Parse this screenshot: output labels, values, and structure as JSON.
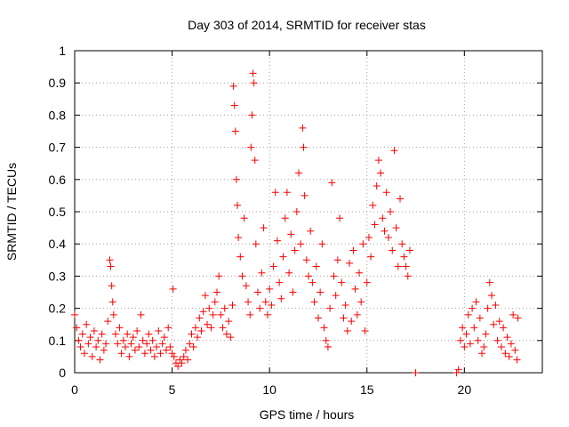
{
  "chart_data": {
    "type": "scatter",
    "title": "Day 303 of 2014, SRMTID for receiver stas",
    "xlabel": "GPS time / hours",
    "ylabel": "SRMTID / TECUs",
    "xlim": [
      0,
      24
    ],
    "ylim": [
      0,
      1
    ],
    "x_ticks": [
      0,
      5,
      10,
      15,
      20
    ],
    "y_ticks": [
      0,
      0.1,
      0.2,
      0.3,
      0.4,
      0.5,
      0.6,
      0.7,
      0.8,
      0.9,
      1
    ],
    "x_tick_labels": [
      "0",
      "5",
      "10",
      "15",
      "20"
    ],
    "y_tick_labels": [
      "0",
      "0.1",
      "0.2",
      "0.3",
      "0.4",
      "0.5",
      "0.6",
      "0.7",
      "0.8",
      "0.9",
      "1"
    ],
    "grid": true,
    "marker": "+",
    "series": [
      {
        "name": "SRMTID",
        "color": "#ff0000",
        "points": [
          [
            0.0,
            0.18
          ],
          [
            0.1,
            0.14
          ],
          [
            0.2,
            0.1
          ],
          [
            0.3,
            0.08
          ],
          [
            0.4,
            0.12
          ],
          [
            0.5,
            0.06
          ],
          [
            0.6,
            0.15
          ],
          [
            0.7,
            0.09
          ],
          [
            0.8,
            0.11
          ],
          [
            0.9,
            0.05
          ],
          [
            1.0,
            0.13
          ],
          [
            1.1,
            0.08
          ],
          [
            1.2,
            0.1
          ],
          [
            1.3,
            0.04
          ],
          [
            1.4,
            0.12
          ],
          [
            1.5,
            0.07
          ],
          [
            1.6,
            0.09
          ],
          [
            1.7,
            0.16
          ],
          [
            1.8,
            0.35
          ],
          [
            1.85,
            0.33
          ],
          [
            1.9,
            0.27
          ],
          [
            1.95,
            0.22
          ],
          [
            2.0,
            0.18
          ],
          [
            2.1,
            0.12
          ],
          [
            2.2,
            0.09
          ],
          [
            2.3,
            0.14
          ],
          [
            2.4,
            0.06
          ],
          [
            2.5,
            0.1
          ],
          [
            2.6,
            0.08
          ],
          [
            2.7,
            0.12
          ],
          [
            2.8,
            0.05
          ],
          [
            2.9,
            0.09
          ],
          [
            3.0,
            0.11
          ],
          [
            3.1,
            0.07
          ],
          [
            3.2,
            0.13
          ],
          [
            3.3,
            0.08
          ],
          [
            3.4,
            0.18
          ],
          [
            3.5,
            0.1
          ],
          [
            3.6,
            0.06
          ],
          [
            3.7,
            0.09
          ],
          [
            3.8,
            0.12
          ],
          [
            3.9,
            0.07
          ],
          [
            4.0,
            0.1
          ],
          [
            4.1,
            0.05
          ],
          [
            4.2,
            0.08
          ],
          [
            4.3,
            0.13
          ],
          [
            4.4,
            0.06
          ],
          [
            4.5,
            0.09
          ],
          [
            4.6,
            0.11
          ],
          [
            4.7,
            0.07
          ],
          [
            4.8,
            0.14
          ],
          [
            4.9,
            0.08
          ],
          [
            5.0,
            0.06
          ],
          [
            5.05,
            0.26
          ],
          [
            5.1,
            0.05
          ],
          [
            5.2,
            0.03
          ],
          [
            5.3,
            0.02
          ],
          [
            5.4,
            0.04
          ],
          [
            5.5,
            0.03
          ],
          [
            5.6,
            0.05
          ],
          [
            5.7,
            0.07
          ],
          [
            5.8,
            0.04
          ],
          [
            5.9,
            0.09
          ],
          [
            6.0,
            0.12
          ],
          [
            6.1,
            0.08
          ],
          [
            6.2,
            0.14
          ],
          [
            6.3,
            0.11
          ],
          [
            6.4,
            0.17
          ],
          [
            6.5,
            0.13
          ],
          [
            6.6,
            0.19
          ],
          [
            6.7,
            0.24
          ],
          [
            6.8,
            0.15
          ],
          [
            6.9,
            0.2
          ],
          [
            7.0,
            0.14
          ],
          [
            7.1,
            0.18
          ],
          [
            7.2,
            0.22
          ],
          [
            7.3,
            0.25
          ],
          [
            7.4,
            0.3
          ],
          [
            7.5,
            0.18
          ],
          [
            7.6,
            0.14
          ],
          [
            7.7,
            0.2
          ],
          [
            7.8,
            0.12
          ],
          [
            7.9,
            0.16
          ],
          [
            8.0,
            0.11
          ],
          [
            8.1,
            0.21
          ],
          [
            8.15,
            0.89
          ],
          [
            8.2,
            0.83
          ],
          [
            8.25,
            0.75
          ],
          [
            8.3,
            0.6
          ],
          [
            8.35,
            0.52
          ],
          [
            8.4,
            0.42
          ],
          [
            8.5,
            0.36
          ],
          [
            8.6,
            0.3
          ],
          [
            8.7,
            0.48
          ],
          [
            8.8,
            0.27
          ],
          [
            8.9,
            0.22
          ],
          [
            9.0,
            0.18
          ],
          [
            9.05,
            0.7
          ],
          [
            9.1,
            0.8
          ],
          [
            9.15,
            0.93
          ],
          [
            9.2,
            0.9
          ],
          [
            9.25,
            0.66
          ],
          [
            9.3,
            0.4
          ],
          [
            9.4,
            0.25
          ],
          [
            9.5,
            0.2
          ],
          [
            9.6,
            0.31
          ],
          [
            9.7,
            0.45
          ],
          [
            9.8,
            0.22
          ],
          [
            9.9,
            0.18
          ],
          [
            10.0,
            0.26
          ],
          [
            10.1,
            0.21
          ],
          [
            10.2,
            0.33
          ],
          [
            10.3,
            0.56
          ],
          [
            10.4,
            0.41
          ],
          [
            10.5,
            0.28
          ],
          [
            10.6,
            0.23
          ],
          [
            10.7,
            0.36
          ],
          [
            10.8,
            0.48
          ],
          [
            10.9,
            0.56
          ],
          [
            11.0,
            0.31
          ],
          [
            11.1,
            0.43
          ],
          [
            11.2,
            0.25
          ],
          [
            11.3,
            0.38
          ],
          [
            11.4,
            0.5
          ],
          [
            11.5,
            0.62
          ],
          [
            11.6,
            0.4
          ],
          [
            11.7,
            0.76
          ],
          [
            11.75,
            0.7
          ],
          [
            11.8,
            0.55
          ],
          [
            11.9,
            0.35
          ],
          [
            12.0,
            0.3
          ],
          [
            12.1,
            0.44
          ],
          [
            12.2,
            0.28
          ],
          [
            12.3,
            0.22
          ],
          [
            12.4,
            0.33
          ],
          [
            12.5,
            0.17
          ],
          [
            12.6,
            0.25
          ],
          [
            12.7,
            0.4
          ],
          [
            12.8,
            0.14
          ],
          [
            12.9,
            0.1
          ],
          [
            13.0,
            0.08
          ],
          [
            13.1,
            0.2
          ],
          [
            13.2,
            0.59
          ],
          [
            13.3,
            0.3
          ],
          [
            13.4,
            0.24
          ],
          [
            13.5,
            0.35
          ],
          [
            13.6,
            0.48
          ],
          [
            13.7,
            0.28
          ],
          [
            13.8,
            0.17
          ],
          [
            13.9,
            0.21
          ],
          [
            14.0,
            0.13
          ],
          [
            14.1,
            0.34
          ],
          [
            14.2,
            0.16
          ],
          [
            14.3,
            0.38
          ],
          [
            14.4,
            0.26
          ],
          [
            14.5,
            0.18
          ],
          [
            14.6,
            0.31
          ],
          [
            14.7,
            0.22
          ],
          [
            14.8,
            0.4
          ],
          [
            14.9,
            0.13
          ],
          [
            15.0,
            0.28
          ],
          [
            15.1,
            0.42
          ],
          [
            15.2,
            0.36
          ],
          [
            15.3,
            0.52
          ],
          [
            15.4,
            0.46
          ],
          [
            15.5,
            0.58
          ],
          [
            15.6,
            0.66
          ],
          [
            15.7,
            0.62
          ],
          [
            15.8,
            0.48
          ],
          [
            15.9,
            0.44
          ],
          [
            16.0,
            0.56
          ],
          [
            16.1,
            0.42
          ],
          [
            16.2,
            0.5
          ],
          [
            16.3,
            0.38
          ],
          [
            16.4,
            0.69
          ],
          [
            16.5,
            0.45
          ],
          [
            16.6,
            0.33
          ],
          [
            16.7,
            0.54
          ],
          [
            16.8,
            0.4
          ],
          [
            16.9,
            0.36
          ],
          [
            17.0,
            0.33
          ],
          [
            17.1,
            0.3
          ],
          [
            17.2,
            0.38
          ],
          [
            17.5,
            0.0
          ],
          [
            19.6,
            0.0
          ],
          [
            19.7,
            0.01
          ],
          [
            19.8,
            0.1
          ],
          [
            19.9,
            0.14
          ],
          [
            20.0,
            0.08
          ],
          [
            20.1,
            0.12
          ],
          [
            20.2,
            0.18
          ],
          [
            20.3,
            0.09
          ],
          [
            20.4,
            0.2
          ],
          [
            20.5,
            0.14
          ],
          [
            20.6,
            0.22
          ],
          [
            20.7,
            0.1
          ],
          [
            20.8,
            0.17
          ],
          [
            20.9,
            0.06
          ],
          [
            21.0,
            0.08
          ],
          [
            21.1,
            0.12
          ],
          [
            21.2,
            0.2
          ],
          [
            21.3,
            0.28
          ],
          [
            21.4,
            0.24
          ],
          [
            21.5,
            0.15
          ],
          [
            21.6,
            0.21
          ],
          [
            21.7,
            0.1
          ],
          [
            21.8,
            0.16
          ],
          [
            21.9,
            0.08
          ],
          [
            22.0,
            0.14
          ],
          [
            22.1,
            0.06
          ],
          [
            22.2,
            0.11
          ],
          [
            22.3,
            0.05
          ],
          [
            22.4,
            0.09
          ],
          [
            22.5,
            0.18
          ],
          [
            22.6,
            0.07
          ],
          [
            22.7,
            0.04
          ],
          [
            22.75,
            0.17
          ]
        ]
      }
    ]
  }
}
